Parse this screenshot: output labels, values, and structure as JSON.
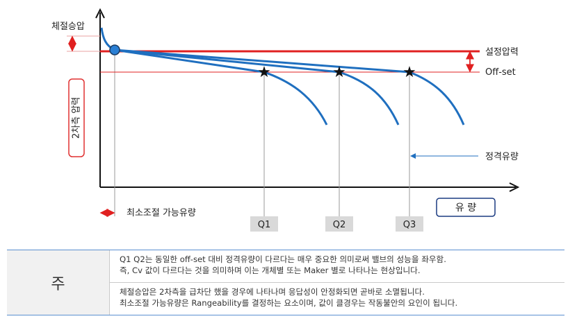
{
  "labels": {
    "set_pressure_rise": "체절승압",
    "set_pressure": "설정압력",
    "offset": "Off-set",
    "secondary_pressure": "2차측 압력",
    "rated_flow": "정격유량",
    "min_flow": "최소조절 가능유량",
    "flow": "유 량"
  },
  "points": [
    "Q1",
    "Q2",
    "Q3"
  ],
  "colors": {
    "curve": "#1f6fbf",
    "set_line": "#e02020",
    "axis": "#111111",
    "label_box_border": "#e03030",
    "point_box": "#d9d9d9"
  },
  "note": {
    "head": "주",
    "rows": [
      {
        "lines": [
          "Q1 Q2는 동일한 off-set 대비 정격유량이 다르다는 매우 중요한 의미로써 밸브의 성능을 좌우함.",
          "즉, Cv 값이 다르다는 것을 의미하며 이는 개체별 또는 Maker 별로 나타나는 현상입니다."
        ]
      },
      {
        "lines": [
          "체절승압은 2차측을 급차단 했을 경우에 나타나며 응답성이 안정화되면 곧바로 소멸됩니다.",
          "최소조절 가능유량은 Rangeability를 결정하는 요소이며, 값이 클경우는 작동불안의 요인이 됩니다."
        ]
      }
    ]
  }
}
